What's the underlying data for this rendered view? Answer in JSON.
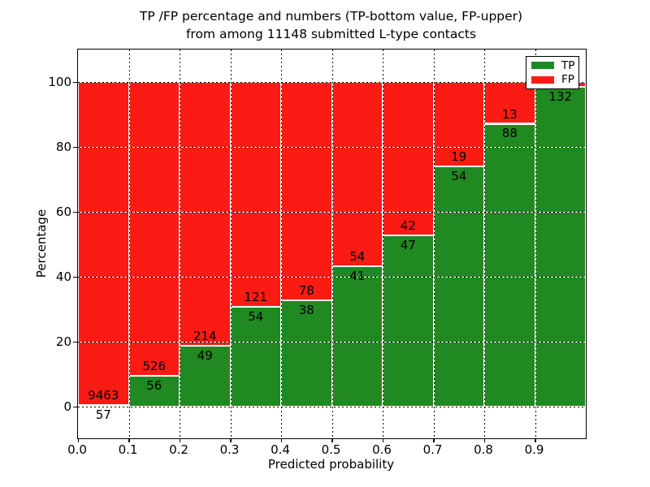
{
  "chart_data": {
    "type": "bar",
    "stacked": true,
    "title_lines": [
      "TP /FP percentage and numbers (TP-bottom value, FP-upper)",
      "from among 11148 submitted L-type contacts"
    ],
    "xlabel": "Predicted probability",
    "ylabel": "Percentage",
    "x_tick_labels": [
      "0.0",
      "0.1",
      "0.2",
      "0.3",
      "0.4",
      "0.5",
      "0.6",
      "0.7",
      "0.8",
      "0.9"
    ],
    "y_tick_labels": [
      "0",
      "20",
      "40",
      "60",
      "80",
      "100"
    ],
    "y_tick_values": [
      0,
      20,
      40,
      60,
      80,
      100
    ],
    "xlim": [
      0.0,
      1.0
    ],
    "ylim": [
      -10,
      110
    ],
    "grid": "dotted",
    "bin_width": 0.1,
    "colors": {
      "tp": "#218921",
      "fp": "#fa1c14"
    },
    "legend": {
      "position": "upper right",
      "entries": [
        {
          "label": "TP",
          "color": "#218921"
        },
        {
          "label": "FP",
          "color": "#fa1c14"
        }
      ]
    },
    "bins": [
      {
        "range": [
          0.0,
          0.1
        ],
        "tp": 57,
        "fp": 9463,
        "tp_pct": 0.6,
        "fp_label_visible": true
      },
      {
        "range": [
          0.1,
          0.2
        ],
        "tp": 56,
        "fp": 526,
        "tp_pct": 9.62,
        "fp_label_visible": true
      },
      {
        "range": [
          0.2,
          0.3
        ],
        "tp": 49,
        "fp": 214,
        "tp_pct": 18.63,
        "fp_label_visible": true
      },
      {
        "range": [
          0.3,
          0.4
        ],
        "tp": 54,
        "fp": 121,
        "tp_pct": 30.86,
        "fp_label_visible": true
      },
      {
        "range": [
          0.4,
          0.5
        ],
        "tp": 38,
        "fp": 78,
        "tp_pct": 32.76,
        "fp_label_visible": true
      },
      {
        "range": [
          0.5,
          0.6
        ],
        "tp": 41,
        "fp": 54,
        "tp_pct": 43.16,
        "fp_label_visible": true
      },
      {
        "range": [
          0.6,
          0.7
        ],
        "tp": 47,
        "fp": 42,
        "tp_pct": 52.81,
        "fp_label_visible": true
      },
      {
        "range": [
          0.7,
          0.8
        ],
        "tp": 54,
        "fp": 19,
        "tp_pct": 73.97,
        "fp_label_visible": true
      },
      {
        "range": [
          0.8,
          0.9
        ],
        "tp": 88,
        "fp": 13,
        "tp_pct": 87.13,
        "fp_label_visible": true
      },
      {
        "range": [
          0.9,
          1.0
        ],
        "tp": 132,
        "fp": 2,
        "tp_pct": 98.51,
        "fp_label_visible": false
      }
    ]
  }
}
